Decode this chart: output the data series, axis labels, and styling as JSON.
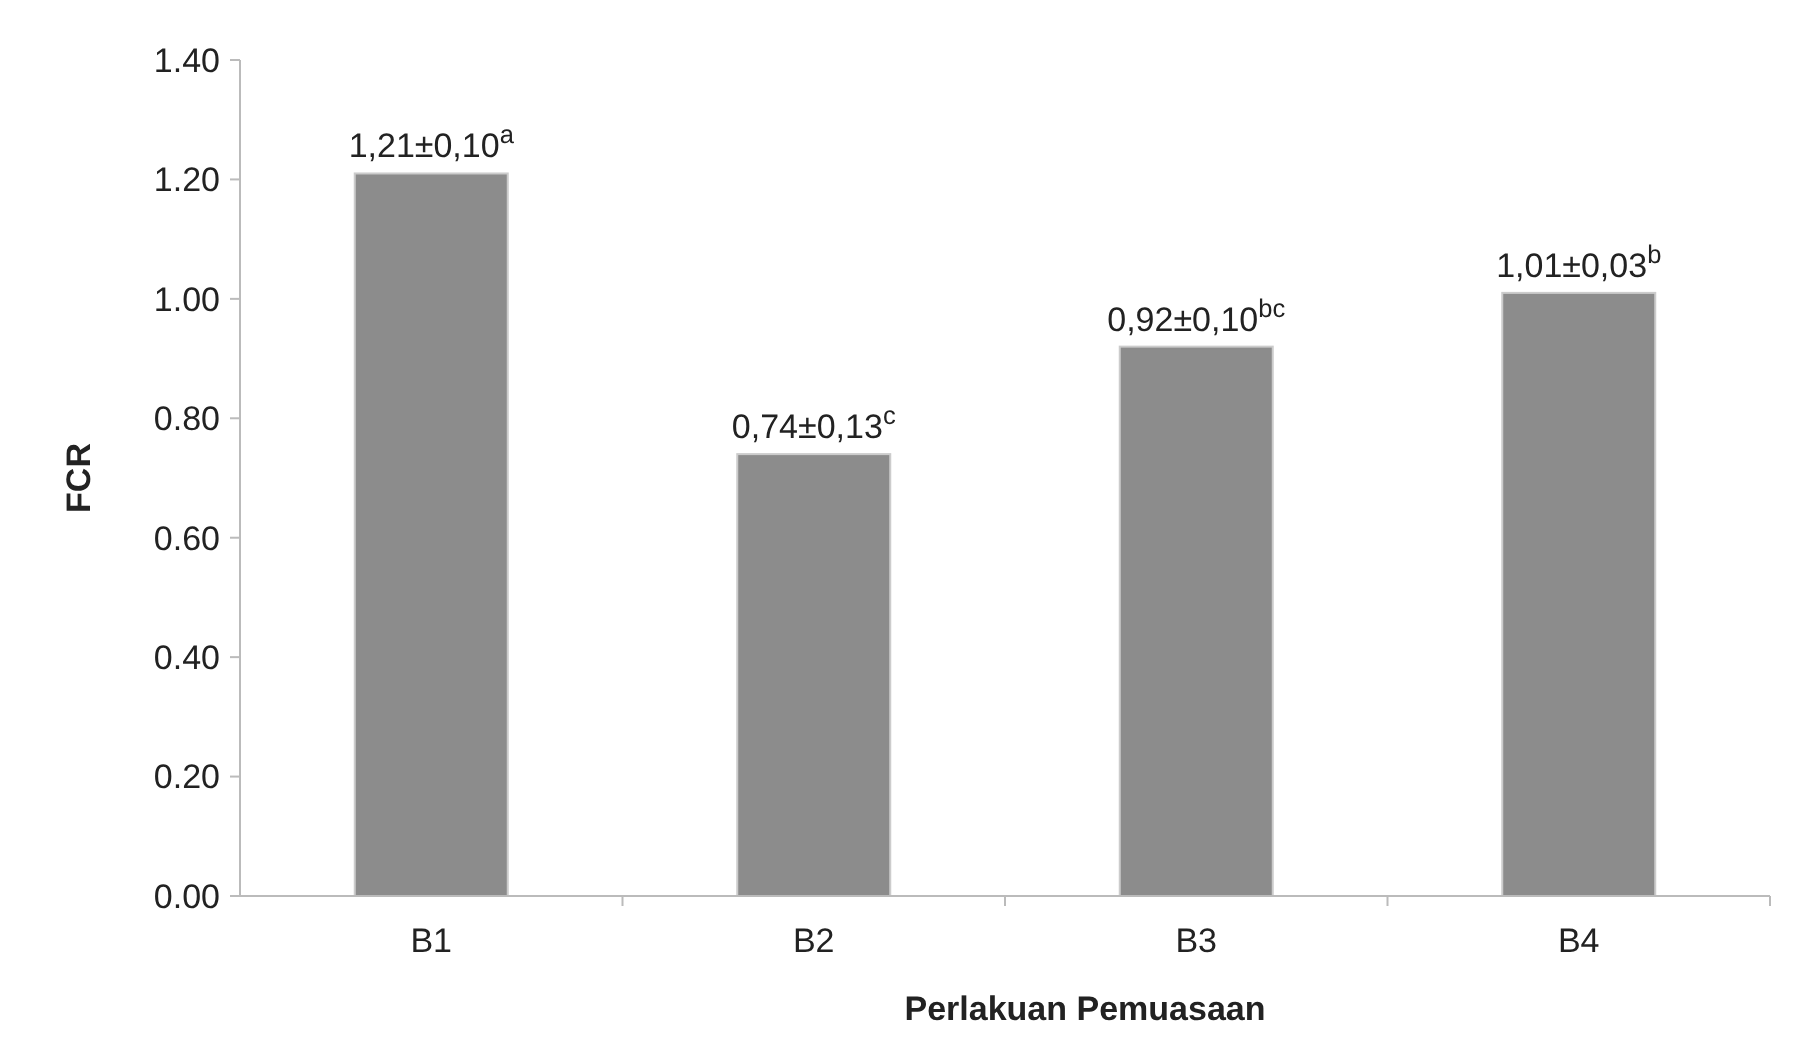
{
  "chart_data": {
    "type": "bar",
    "xlabel": "Perlakuan Pemuasaan",
    "ylabel": "FCR",
    "categories": [
      "B1",
      "B2",
      "B3",
      "B4"
    ],
    "values": [
      1.21,
      0.74,
      0.92,
      1.01
    ],
    "value_labels": [
      "1,21±0,10$^{a}$",
      "0,74±0,13$^{c}$",
      "0,92±0,10$^{bc}$",
      "1,01±0,03$^{b}$"
    ],
    "color": "#8c8c8c",
    "ylim": [
      0,
      1.4
    ],
    "yticks": [
      {
        "value": 0,
        "label": "0.00"
      },
      {
        "value": 0.2,
        "label": "0.20"
      },
      {
        "value": 0.4,
        "label": "0.40"
      },
      {
        "value": 0.6,
        "label": "0.60"
      },
      {
        "value": 0.8,
        "label": "0.80"
      },
      {
        "value": 1.0,
        "label": "1.00"
      },
      {
        "value": 1.2,
        "label": "1.20"
      },
      {
        "value": 1.4,
        "label": "1.40"
      }
    ],
    "grid": false
  }
}
